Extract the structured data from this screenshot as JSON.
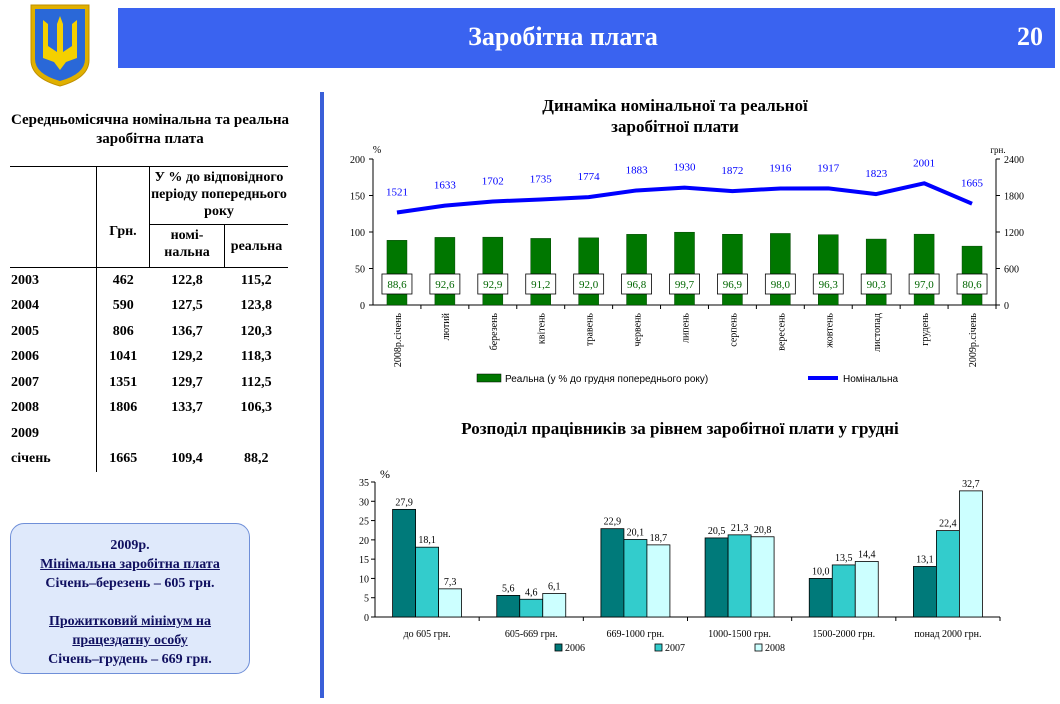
{
  "header": {
    "title": "Заробітна плата",
    "page": "20"
  },
  "table": {
    "title": "Середньомісячна номінальна та реальна  заробітна плата",
    "col_uah": "Грн.",
    "col_group": "У % до відповідного періоду попереднього року",
    "col_nominal": "номі-нальна",
    "col_real": "реальна",
    "rows": [
      {
        "year": "2003",
        "uah": "462",
        "nominal": "122,8",
        "real": "115,2"
      },
      {
        "year": "2004",
        "uah": "590",
        "nominal": "127,5",
        "real": "123,8"
      },
      {
        "year": "2005",
        "uah": "806",
        "nominal": "136,7",
        "real": "120,3"
      },
      {
        "year": "2006",
        "uah": "1041",
        "nominal": "129,2",
        "real": "118,3"
      },
      {
        "year": "2007",
        "uah": "1351",
        "nominal": "129,7",
        "real": "112,5"
      },
      {
        "year": "2008",
        "uah": "1806",
        "nominal": "133,7",
        "real": "106,3"
      },
      {
        "year": "2009",
        "uah": "",
        "nominal": "",
        "real": ""
      },
      {
        "year": "січень",
        "uah": "1665",
        "nominal": "109,4",
        "real": "88,2"
      }
    ]
  },
  "info": {
    "year": "2009р.",
    "min_wage_title": "Мінімальна заробітна плата",
    "min_wage": "Січень–березень – 605 грн.",
    "subsistence_title": "Прожитковий мінімум на працездатну особу",
    "subsistence": "Січень–грудень – 669 грн."
  },
  "colors": {
    "header": "#3a63f0",
    "real": "#007700",
    "nominal": "#0000ff",
    "s2006": "#007a7a",
    "s2007": "#33cccc",
    "s2008": "#ccffff"
  },
  "chart_data": [
    {
      "type": "bar+line",
      "title": "Динаміка номінальної та реальної заробітної плати",
      "ylabel_left": "%",
      "ylabel_right": "грн.",
      "ylim_left": [
        0,
        200
      ],
      "yticks_left": [
        0,
        50,
        100,
        150,
        200
      ],
      "ylim_right": [
        0,
        2400
      ],
      "yticks_right": [
        0,
        600,
        1200,
        1800,
        2400
      ],
      "categories": [
        "2008р.січень",
        "лютий",
        "березень",
        "квітень",
        "травень",
        "червень",
        "липень",
        "серпень",
        "вересень",
        "жовтень",
        "листопад",
        "грудень",
        "2009р.січень"
      ],
      "series": [
        {
          "name": "Реальна (у % до грудня попереднього року)",
          "axis": "left",
          "kind": "bar",
          "values": [
            88.6,
            92.6,
            92.9,
            91.2,
            92.0,
            96.8,
            99.7,
            96.9,
            98.0,
            96.3,
            90.3,
            97.0,
            80.6
          ],
          "labels": [
            "88,6",
            "92,6",
            "92,9",
            "91,2",
            "92,0",
            "96,8",
            "99,7",
            "96,9",
            "98,0",
            "96,3",
            "90,3",
            "97,0",
            "80,6"
          ]
        },
        {
          "name": "Номінальна",
          "axis": "right",
          "kind": "line",
          "values": [
            1521,
            1633,
            1702,
            1735,
            1774,
            1883,
            1930,
            1872,
            1916,
            1917,
            1823,
            2001,
            1665
          ],
          "labels": [
            "1521",
            "1633",
            "1702",
            "1735",
            "1774",
            "1883",
            "1930",
            "1872",
            "1916",
            "1917",
            "1823",
            "2001",
            "1665"
          ]
        }
      ],
      "legend": "bottom"
    },
    {
      "type": "bar",
      "title": "Розподіл працівників за рівнем заробітної плати у грудні",
      "ylabel": "%",
      "ylim": [
        0,
        35
      ],
      "yticks": [
        0,
        5,
        10,
        15,
        20,
        25,
        30,
        35
      ],
      "categories": [
        "до 605 грн.",
        "605-669 грн.",
        "669-1000 грн.",
        "1000-1500 грн.",
        "1500-2000 грн.",
        "понад 2000 грн."
      ],
      "series": [
        {
          "name": "2006",
          "values": [
            27.9,
            5.6,
            22.9,
            20.5,
            10.0,
            13.1
          ],
          "labels": [
            "27,9",
            "5,6",
            "22,9",
            "20,5",
            "10,0",
            "13,1"
          ]
        },
        {
          "name": "2007",
          "values": [
            18.1,
            4.6,
            20.1,
            21.3,
            13.5,
            22.4
          ],
          "labels": [
            "18,1",
            "4,6",
            "20,1",
            "21,3",
            "13,5",
            "22,4"
          ]
        },
        {
          "name": "2008",
          "values": [
            7.3,
            6.1,
            18.7,
            20.8,
            14.4,
            32.7
          ],
          "labels": [
            "7,3",
            "6,1",
            "18,7",
            "20,8",
            "14,4",
            "32,7"
          ]
        }
      ],
      "legend": "bottom"
    }
  ]
}
